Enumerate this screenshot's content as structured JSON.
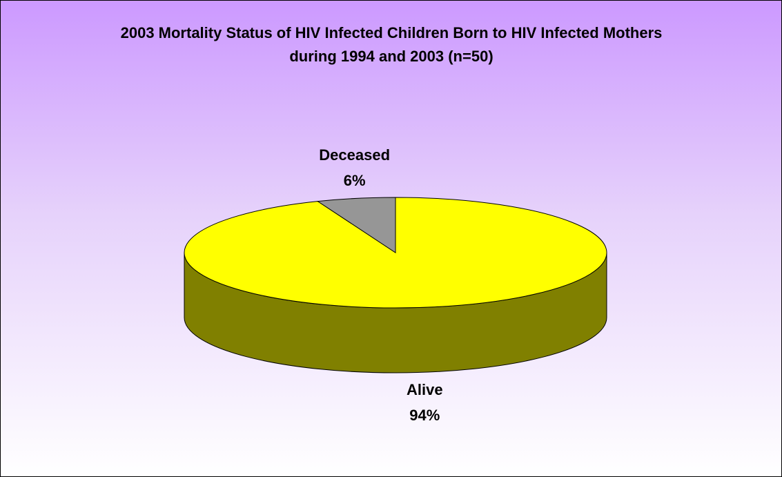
{
  "chart_data": {
    "type": "pie3d",
    "title": "2003 Mortality Status of HIV Infected Children Born to HIV Infected Mothers during 1994 and 2003 (n=50)",
    "categories": [
      "Alive",
      "Deceased"
    ],
    "values": [
      94,
      6
    ],
    "value_labels": [
      "94%",
      "6%"
    ],
    "colors": [
      "#ffff00",
      "#969696"
    ],
    "side_colors": [
      "#808000",
      "#4b4b4b"
    ]
  }
}
